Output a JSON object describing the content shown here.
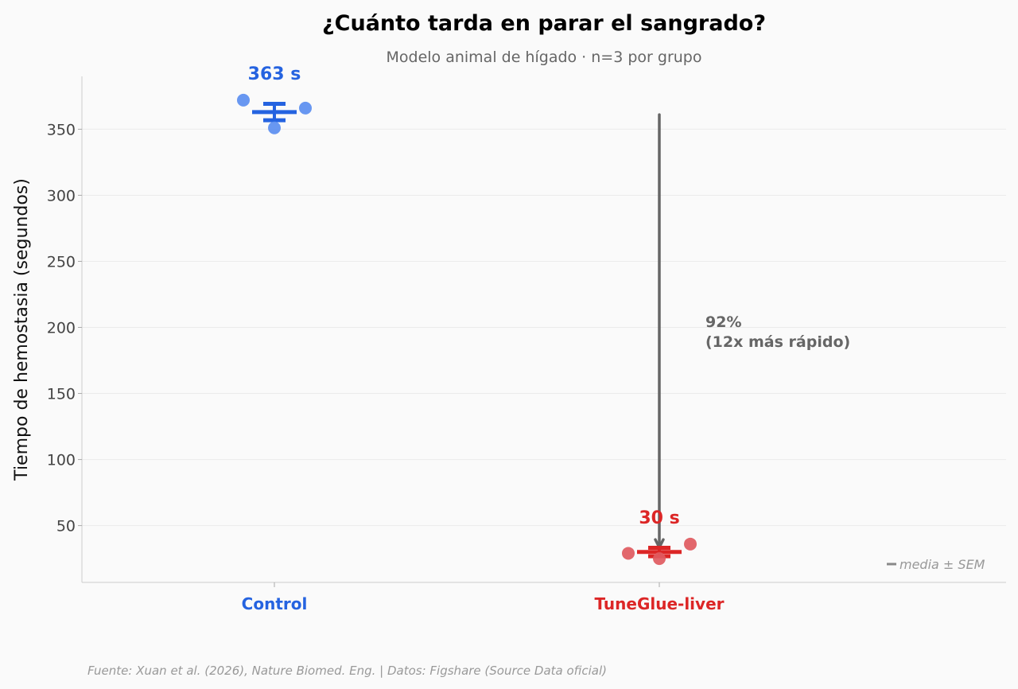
{
  "chart_data": {
    "type": "scatter",
    "title": "¿Cuánto tarda en parar el sangrado?",
    "subtitle": "Modelo animal de hígado · n=3 por grupo",
    "ylabel": "Tiempo de hemostasia (segundos)",
    "xlabel": "",
    "ylim": [
      7,
      390
    ],
    "yticks": [
      50,
      100,
      150,
      200,
      250,
      300,
      350
    ],
    "ytick_labels": [
      "50",
      "100",
      "150",
      "200",
      "250",
      "300",
      "350"
    ],
    "grid": "horizontal",
    "categories": [
      "Control",
      "TuneGlue-liver"
    ],
    "series": [
      {
        "name": "Control",
        "color": "#2563e0",
        "point_color": "#5b8ef0",
        "points": [
          372,
          351,
          366
        ],
        "mean": 363,
        "sem": 6.2,
        "mean_label": "363 s"
      },
      {
        "name": "TuneGlue-liver",
        "color": "#dc2626",
        "point_color": "#e05a5f",
        "points": [
          29,
          25,
          36
        ],
        "mean": 30,
        "sem": 3.2,
        "mean_label": "30 s"
      }
    ],
    "annotation": {
      "line1": "92%",
      "line2": "(12x más rápido)",
      "arrow_from": 361,
      "arrow_to": 31,
      "color": "#666666"
    },
    "legend": {
      "label": "media ± SEM",
      "position": "bottom-right"
    }
  },
  "footer": "Fuente: Xuan et al. (2026), Nature Biomed. Eng. | Datos: Figshare (Source Data oficial)"
}
